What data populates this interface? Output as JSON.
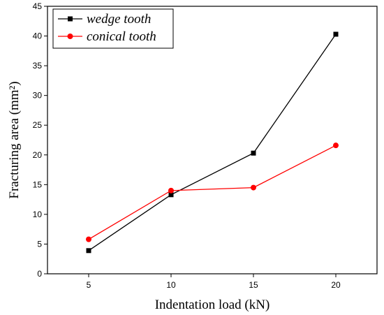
{
  "chart_data": {
    "type": "line",
    "xlabel": "Indentation load (kN)",
    "ylabel": "Fracturing area (mm²)",
    "x": [
      5,
      10,
      15,
      20
    ],
    "x_ticks": [
      "5",
      "10",
      "15",
      "20"
    ],
    "xlim": [
      2.5,
      22.5
    ],
    "ylim": [
      0,
      45
    ],
    "y_ticks": [
      "0",
      "5",
      "10",
      "15",
      "20",
      "25",
      "30",
      "35",
      "40",
      "45"
    ],
    "grid": false,
    "legend_position": "top-left",
    "series": [
      {
        "name": "wedge tooth",
        "values": [
          3.9,
          13.3,
          20.3,
          40.3
        ],
        "color": "#000000",
        "marker": "square"
      },
      {
        "name": "conical tooth",
        "values": [
          5.8,
          14.0,
          14.5,
          21.6
        ],
        "color": "#ff0000",
        "marker": "circle"
      }
    ]
  }
}
